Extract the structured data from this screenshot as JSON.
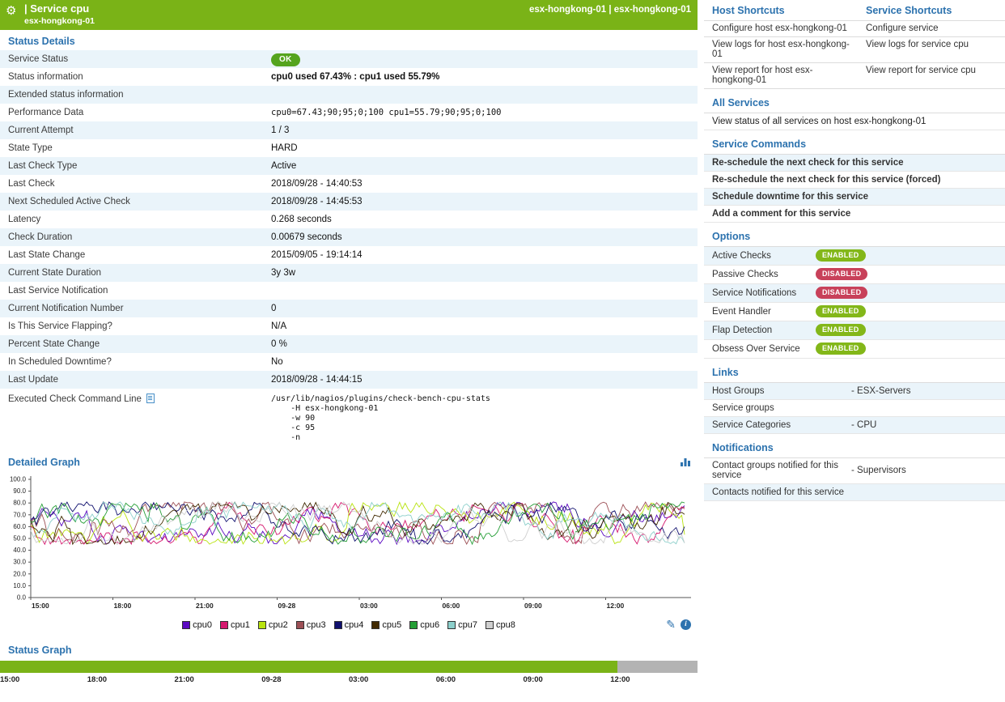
{
  "colors": {
    "header_green": "#7ab317",
    "section_blue": "#2c72ae",
    "row_alt": "#eaf4fa",
    "border": "#dcdcdc",
    "ok_badge": "#55a41e",
    "enabled_badge": "#83b719",
    "disabled_badge": "#c8415a",
    "status_ok_green": "#7ab317",
    "status_nodata_gray": "#b3b3b3"
  },
  "header": {
    "title": "| Service cpu",
    "subtitle": "esx-hongkong-01",
    "right": "esx-hongkong-01 | esx-hongkong-01"
  },
  "status_details": {
    "title": "Status Details",
    "rows": [
      {
        "label": "Service Status",
        "badge": "OK"
      },
      {
        "label": "Status information",
        "value": "cpu0 used 67.43% : cpu1 used 55.79%",
        "bold": true
      },
      {
        "label": "Extended status information",
        "value": ""
      },
      {
        "label": "Performance Data",
        "value": "cpu0=67.43;90;95;0;100 cpu1=55.79;90;95;0;100",
        "mono": true
      },
      {
        "label": "Current Attempt",
        "value": "1 / 3"
      },
      {
        "label": "State Type",
        "value": "HARD"
      },
      {
        "label": "Last Check Type",
        "value": "Active"
      },
      {
        "label": "Last Check",
        "value": "2018/09/28 - 14:40:53"
      },
      {
        "label": "Next Scheduled Active Check",
        "value": "2018/09/28 - 14:45:53"
      },
      {
        "label": "Latency",
        "value": "0.268 seconds"
      },
      {
        "label": "Check Duration",
        "value": "0.00679 seconds"
      },
      {
        "label": "Last State Change",
        "value": "2015/09/05 - 19:14:14"
      },
      {
        "label": "Current State Duration",
        "value": "3y 3w"
      },
      {
        "label": "Last Service Notification",
        "value": ""
      },
      {
        "label": "Current Notification Number",
        "value": "0"
      },
      {
        "label": "Is This Service Flapping?",
        "value": "N/A"
      },
      {
        "label": "Percent State Change",
        "value": "0 %"
      },
      {
        "label": "In Scheduled Downtime?",
        "value": "No"
      },
      {
        "label": "Last Update",
        "value": "2018/09/28 - 14:44:15"
      },
      {
        "label": "Executed Check Command Line",
        "value": "/usr/lib/nagios/plugins/check-bench-cpu-stats\n    -H esx-hongkong-01\n    -w 90\n    -c 95\n    -n",
        "mono": true,
        "icon": "copy-icon"
      }
    ]
  },
  "detailed_graph": {
    "title": "Detailed Graph"
  },
  "status_graph": {
    "title": "Status Graph",
    "x_ticks": [
      "15:00",
      "18:00",
      "21:00",
      "09-28",
      "03:00",
      "06:00",
      "09:00",
      "12:00"
    ]
  },
  "chart_data": [
    {
      "type": "line",
      "title": "Detailed Graph",
      "ylim": [
        0,
        100
      ],
      "ytick_step": 10,
      "ytick_labels": [
        "0.0",
        "10.0",
        "20.0",
        "30.0",
        "40.0",
        "50.0",
        "60.0",
        "70.0",
        "80.0",
        "90.0",
        "100.0"
      ],
      "x_ticks": [
        "15:00",
        "18:00",
        "21:00",
        "09-28",
        "03:00",
        "06:00",
        "09:00",
        "12:00"
      ],
      "legend_position": "bottom",
      "series": [
        {
          "name": "cpu0",
          "color": "#5c0ac2",
          "approx_range": [
            45,
            81
          ],
          "approx_mean": 62
        },
        {
          "name": "cpu1",
          "color": "#d6196f",
          "approx_range": [
            45,
            81
          ],
          "approx_mean": 62
        },
        {
          "name": "cpu2",
          "color": "#b8e30e",
          "approx_range": [
            45,
            81
          ],
          "approx_mean": 62
        },
        {
          "name": "cpu3",
          "color": "#9c4f55",
          "approx_range": [
            45,
            81
          ],
          "approx_mean": 62
        },
        {
          "name": "cpu4",
          "color": "#10106e",
          "approx_range": [
            45,
            81
          ],
          "approx_mean": 62
        },
        {
          "name": "cpu5",
          "color": "#402900",
          "approx_range": [
            45,
            81
          ],
          "approx_mean": 62
        },
        {
          "name": "cpu6",
          "color": "#259e36",
          "approx_range": [
            45,
            81
          ],
          "approx_mean": 62
        },
        {
          "name": "cpu7",
          "color": "#8ccfcb",
          "approx_range": [
            45,
            81
          ],
          "approx_mean": 62
        },
        {
          "name": "cpu8",
          "color": "#cfcfcf",
          "approx_range": [
            45,
            81
          ],
          "approx_mean": 62
        }
      ],
      "description": "Nine overlapping noisy CPU-usage series fluctuating between roughly 45% and 80% over the last 24 hours"
    },
    {
      "type": "area",
      "title": "Status Graph",
      "x_ticks": [
        "15:00",
        "18:00",
        "21:00",
        "09-28",
        "03:00",
        "06:00",
        "09:00",
        "12:00"
      ],
      "segments": [
        {
          "state": "OK",
          "fraction": 0.885
        },
        {
          "state": "no-data",
          "fraction": 0.115
        }
      ]
    }
  ],
  "right_panel": {
    "host_shortcuts": {
      "title": "Host Shortcuts",
      "items": [
        "Configure host esx-hongkong-01",
        "View logs for host esx-hongkong-01",
        "View report for host esx-hongkong-01"
      ]
    },
    "service_shortcuts": {
      "title": "Service Shortcuts",
      "items": [
        "Configure service",
        "View logs for service cpu",
        "View report for service cpu"
      ]
    },
    "all_services": {
      "title": "All Services",
      "items": [
        "View status of all services on host esx-hongkong-01"
      ]
    },
    "service_commands": {
      "title": "Service Commands",
      "items": [
        "Re-schedule the next check for this service",
        "Re-schedule the next check for this service (forced)",
        "Schedule downtime for this service",
        "Add a comment for this service"
      ]
    },
    "options": {
      "title": "Options",
      "items": [
        {
          "label": "Active Checks",
          "state": "ENABLED"
        },
        {
          "label": "Passive Checks",
          "state": "DISABLED"
        },
        {
          "label": "Service Notifications",
          "state": "DISABLED"
        },
        {
          "label": "Event Handler",
          "state": "ENABLED"
        },
        {
          "label": "Flap Detection",
          "state": "ENABLED"
        },
        {
          "label": "Obsess Over Service",
          "state": "ENABLED"
        }
      ]
    },
    "links": {
      "title": "Links",
      "items": [
        {
          "label": "Host Groups",
          "value": "- ESX-Servers"
        },
        {
          "label": "Service groups",
          "value": ""
        },
        {
          "label": "Service Categories",
          "value": "- CPU"
        }
      ]
    },
    "notifications": {
      "title": "Notifications",
      "items": [
        {
          "label": "Contact groups notified for this service",
          "value": "- Supervisors"
        },
        {
          "label": "Contacts notified for this service",
          "value": ""
        }
      ]
    }
  }
}
